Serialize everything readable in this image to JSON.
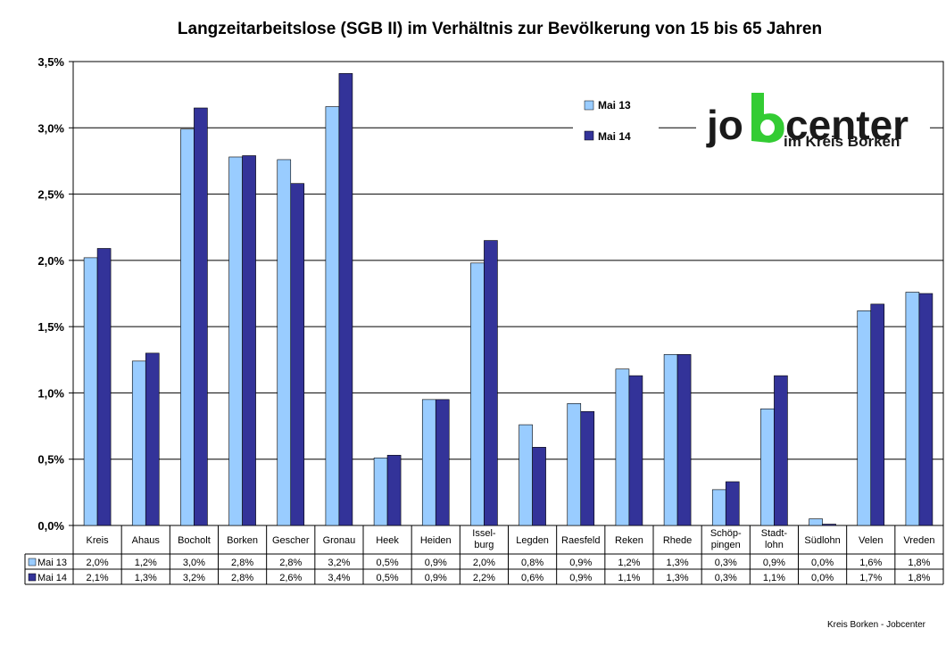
{
  "chart_data": {
    "type": "bar",
    "title": "Langzeitarbeitslose (SGB II) im Verhältnis zur Bevölkerung von 15 bis 65 Jahren",
    "categories": [
      "Kreis",
      "Ahaus",
      "Bocholt",
      "Borken",
      "Gescher",
      "Gronau",
      "Heek",
      "Heiden",
      "Issel-\nburg",
      "Legden",
      "Raesfeld",
      "Reken",
      "Rhede",
      "Schöp-\npingen",
      "Stadt-\nlohn",
      "Südlohn",
      "Velen",
      "Vreden"
    ],
    "series": [
      {
        "name": "Mai 13",
        "color": "#99CCFF",
        "values": [
          2.02,
          1.24,
          2.99,
          2.78,
          2.76,
          3.16,
          0.51,
          0.95,
          1.98,
          0.76,
          0.92,
          1.18,
          1.29,
          0.27,
          0.88,
          0.05,
          1.62,
          1.76
        ],
        "labels": [
          "2,0%",
          "1,2%",
          "3,0%",
          "2,8%",
          "2,8%",
          "3,2%",
          "0,5%",
          "0,9%",
          "2,0%",
          "0,8%",
          "0,9%",
          "1,2%",
          "1,3%",
          "0,3%",
          "0,9%",
          "0,0%",
          "1,6%",
          "1,8%"
        ]
      },
      {
        "name": "Mai 14",
        "color": "#333399",
        "values": [
          2.09,
          1.3,
          3.15,
          2.79,
          2.58,
          3.41,
          0.53,
          0.95,
          2.15,
          0.59,
          0.86,
          1.13,
          1.29,
          0.33,
          1.13,
          0.01,
          1.67,
          1.75
        ],
        "labels": [
          "2,1%",
          "1,3%",
          "3,2%",
          "2,8%",
          "2,6%",
          "3,4%",
          "0,5%",
          "0,9%",
          "2,2%",
          "0,6%",
          "0,9%",
          "1,1%",
          "1,3%",
          "0,3%",
          "1,1%",
          "0,0%",
          "1,7%",
          "1,8%"
        ]
      }
    ],
    "ylim": [
      0,
      3.5
    ],
    "yticks": [
      0,
      0.5,
      1.0,
      1.5,
      2.0,
      2.5,
      3.0,
      3.5
    ],
    "ytick_labels": [
      "0,0%",
      "0,5%",
      "1,0%",
      "1,5%",
      "2,0%",
      "2,5%",
      "3,0%",
      "3,5%"
    ],
    "grid": true,
    "legend_position": "top-right",
    "data_table": true
  },
  "logo": {
    "main_left": "jo",
    "main_right": "center",
    "sub": "im Kreis Borken",
    "accent": "#33CC33"
  },
  "footer": "Kreis Borken - Jobcenter"
}
